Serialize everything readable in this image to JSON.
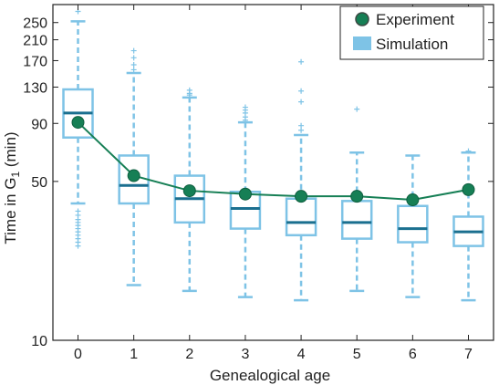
{
  "chart_data": {
    "type": "box",
    "xlabel": "Genealogical age",
    "ylabel_main": "Time in G",
    "ylabel_sub": "1",
    "ylabel_unit": " (min)",
    "categories": [
      "0",
      "1",
      "2",
      "3",
      "4",
      "5",
      "6",
      "7"
    ],
    "yscale": "log",
    "ylim": [
      10,
      300
    ],
    "yticks": [
      10,
      50,
      90,
      130,
      170,
      210,
      250
    ],
    "xlim": [
      -0.45,
      7.45
    ],
    "legend": {
      "position": "top-right",
      "experiment_label": "Experiment",
      "simulation_label": "Simulation"
    },
    "colors": {
      "box": "#7ec3e6",
      "median": "#1a6f8f",
      "experiment": "#167f55",
      "experiment_edge": "#0e5e3f"
    },
    "series": [
      {
        "name": "Simulation",
        "boxes": [
          {
            "whisker_low": 40,
            "q1": 78,
            "median": 100,
            "q3": 127,
            "whisker_high": 253,
            "outliers": [
              37,
              35.5,
              34,
              33,
              32,
              31,
              30,
              29,
              28,
              27,
              26,
              280
            ]
          },
          {
            "whisker_low": 17.5,
            "q1": 40,
            "median": 48,
            "q3": 65,
            "whisker_high": 150,
            "outliers": [
              155,
              163,
              175,
              188
            ]
          },
          {
            "whisker_low": 16.5,
            "q1": 33,
            "median": 42,
            "q3": 53,
            "whisker_high": 117,
            "outliers": [
              120,
              122,
              126
            ]
          },
          {
            "whisker_low": 15.5,
            "q1": 31,
            "median": 38,
            "q3": 45,
            "whisker_high": 91,
            "outliers": [
              93,
              96,
              100,
              103,
              106
            ]
          },
          {
            "whisker_low": 15,
            "q1": 29,
            "median": 33,
            "q3": 42,
            "whisker_high": 80,
            "outliers": [
              84,
              88,
              112,
              125,
              168
            ]
          },
          {
            "whisker_low": 16.5,
            "q1": 28,
            "median": 33,
            "q3": 41,
            "whisker_high": 67,
            "outliers": [
              104
            ]
          },
          {
            "whisker_low": 15.5,
            "q1": 27,
            "median": 31,
            "q3": 39,
            "whisker_high": 65,
            "outliers": []
          },
          {
            "whisker_low": 15,
            "q1": 26,
            "median": 30,
            "q3": 35,
            "whisker_high": 67,
            "outliers": [
              68
            ]
          }
        ]
      },
      {
        "name": "Experiment",
        "x": [
          "0",
          "1",
          "2",
          "3",
          "4",
          "5",
          "6",
          "7"
        ],
        "values": [
          91,
          53,
          45.5,
          44,
          43,
          43,
          41.5,
          46
        ]
      }
    ]
  }
}
